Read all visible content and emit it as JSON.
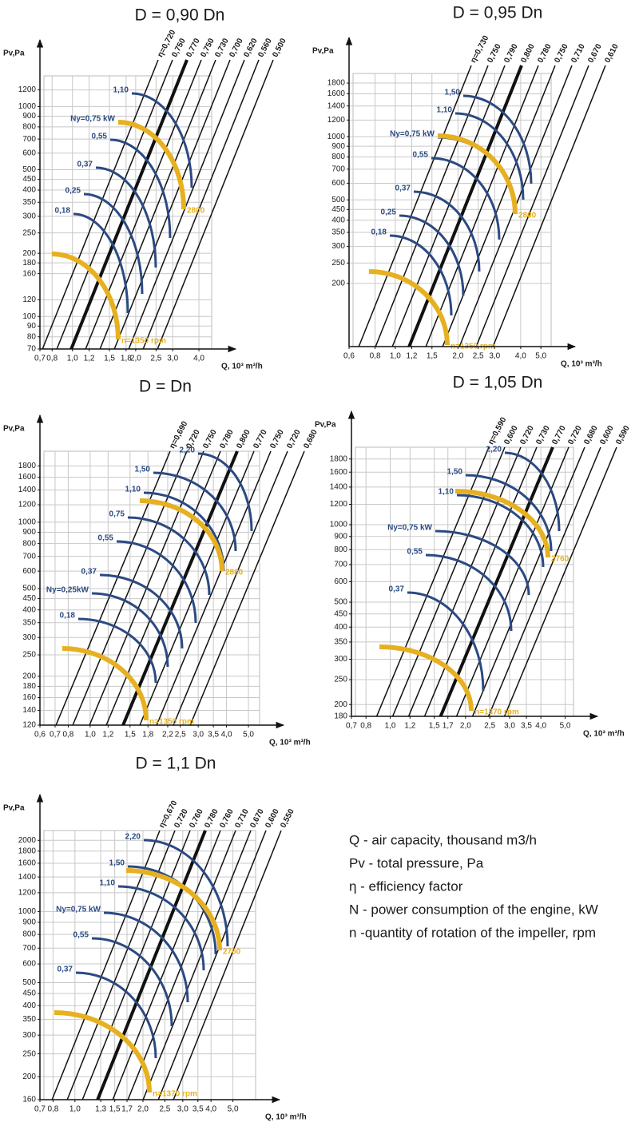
{
  "chart_data": [
    {
      "type": "fan-curve",
      "title": "D = 0,90 Dn",
      "y_label": "Pv,Pa",
      "x_label": "Q, 10³ m³/h",
      "xlog": true,
      "ylog": true,
      "grid": true,
      "xlim": [
        0.7,
        4.6
      ],
      "ylim": [
        70,
        1400
      ],
      "xticks": [
        {
          "value": 0.7,
          "label": "0,7"
        },
        {
          "value": 0.8,
          "label": "0,8"
        },
        {
          "value": 1.0,
          "label": "1,0"
        },
        {
          "value": 1.2,
          "label": "1,2"
        },
        {
          "value": 1.5,
          "label": "1,5"
        },
        {
          "value": 1.8,
          "label": "1,8"
        },
        {
          "value": 2.0,
          "label": "2,0"
        },
        {
          "value": 2.5,
          "label": "2,5"
        },
        {
          "value": 3.0,
          "label": "3,0"
        },
        {
          "value": 4.0,
          "label": "4,0"
        }
      ],
      "yticks": [
        70,
        80,
        90,
        100,
        120,
        160,
        180,
        200,
        250,
        300,
        350,
        400,
        450,
        500,
        600,
        700,
        800,
        900,
        1000,
        1200
      ],
      "efficiency_labels": [
        "η=0,720",
        "0,750",
        "0,770",
        "0,750",
        "0,730",
        "0,700",
        "0,620",
        "0,560",
        "0,500"
      ],
      "power_labels": [
        "1,10",
        "Ny=0,75 kW",
        "0,55",
        "0,37",
        "0,25",
        "0,18"
      ],
      "speed_labels": [
        "2800",
        "n=1350 rpm"
      ],
      "efficiency_color": "#111111",
      "power_color": "#2b4a82",
      "speed_color": "#e6b020"
    },
    {
      "type": "fan-curve",
      "title": "D = 0,95 Dn",
      "y_label": "Pv,Pa",
      "x_label": "Q, 10³ m³/h",
      "xlog": true,
      "ylog": true,
      "grid": true,
      "xlim": [
        0.6,
        5.6
      ],
      "ylim": [
        100,
        2000
      ],
      "xticks": [
        {
          "value": 0.6,
          "label": "0,6"
        },
        {
          "value": 0.8,
          "label": "0,8"
        },
        {
          "value": 1.0,
          "label": "1,0"
        },
        {
          "value": 1.2,
          "label": "1,2"
        },
        {
          "value": 1.5,
          "label": "1,5"
        },
        {
          "value": 2.0,
          "label": "2,0"
        },
        {
          "value": 2.5,
          "label": "2,5"
        },
        {
          "value": 3.0,
          "label": "3,0"
        },
        {
          "value": 4.0,
          "label": "4,0"
        },
        {
          "value": 5.0,
          "label": "5,0"
        }
      ],
      "yticks": [
        200,
        250,
        300,
        350,
        400,
        450,
        500,
        600,
        700,
        800,
        900,
        1000,
        1200,
        1400,
        1600,
        1800
      ],
      "efficiency_labels": [
        "η=0,730",
        "0,750",
        "0,790",
        "0,800",
        "0,780",
        "0,750",
        "0,710",
        "0,670",
        "0,610"
      ],
      "power_labels": [
        "1,50",
        "1,10",
        "Ny=0,75 kW",
        "0,55",
        "0,37",
        "0,25",
        "0,18"
      ],
      "speed_labels": [
        "2800",
        "n=1350 rpm"
      ],
      "efficiency_color": "#111111",
      "power_color": "#2b4a82",
      "speed_color": "#e6b020"
    },
    {
      "type": "fan-curve",
      "title": "D = Dn",
      "y_label": "Pv,Pa",
      "x_label": "Q, 10³ m³/h",
      "xlog": true,
      "ylog": true,
      "grid": true,
      "xlim": [
        0.6,
        5.6
      ],
      "ylim": [
        120,
        2100
      ],
      "xticks": [
        {
          "value": 0.6,
          "label": "0,6"
        },
        {
          "value": 0.7,
          "label": "0,7"
        },
        {
          "value": 0.8,
          "label": "0,8"
        },
        {
          "value": 1.0,
          "label": "1,0"
        },
        {
          "value": 1.2,
          "label": "1,2"
        },
        {
          "value": 1.5,
          "label": "1,5"
        },
        {
          "value": 1.8,
          "label": "1,8"
        },
        {
          "value": 2.2,
          "label": "2,2"
        },
        {
          "value": 2.5,
          "label": "2,5"
        },
        {
          "value": 3.0,
          "label": "3,0"
        },
        {
          "value": 3.5,
          "label": "3,5"
        },
        {
          "value": 4.0,
          "label": "4,0"
        },
        {
          "value": 5.0,
          "label": "5,0"
        }
      ],
      "yticks": [
        120,
        140,
        160,
        180,
        200,
        250,
        300,
        350,
        400,
        450,
        500,
        600,
        700,
        800,
        900,
        1000,
        1200,
        1400,
        1600,
        1800
      ],
      "efficiency_labels": [
        "η=0,690",
        "0,720",
        "0,750",
        "0,780",
        "0,800",
        "0,770",
        "0,750",
        "0,720",
        "0,680"
      ],
      "power_labels": [
        "2,20",
        "1,50",
        "1,10",
        "0,75",
        "0,55",
        "0,37",
        "Ny=0,25kW",
        "0,18"
      ],
      "speed_labels": [
        "2880",
        "n=1350 rpm"
      ],
      "efficiency_color": "#111111",
      "power_color": "#2b4a82",
      "speed_color": "#e6b020"
    },
    {
      "type": "fan-curve",
      "title": "D = 1,05 Dn",
      "y_label": "Pv,Pa",
      "x_label": "Q, 10³ m³/h",
      "xlog": true,
      "ylog": true,
      "grid": true,
      "xlim": [
        0.7,
        5.4
      ],
      "ylim": [
        180,
        2000
      ],
      "xticks": [
        {
          "value": 0.7,
          "label": "0,7"
        },
        {
          "value": 0.8,
          "label": "0,8"
        },
        {
          "value": 1.0,
          "label": "1,0"
        },
        {
          "value": 1.2,
          "label": "1,2"
        },
        {
          "value": 1.5,
          "label": "1,5"
        },
        {
          "value": 1.7,
          "label": "1,7"
        },
        {
          "value": 2.0,
          "label": "2,0"
        },
        {
          "value": 2.5,
          "label": "2,5"
        },
        {
          "value": 3.0,
          "label": "3,0"
        },
        {
          "value": 3.5,
          "label": "3,5"
        },
        {
          "value": 4.0,
          "label": "4,0"
        },
        {
          "value": 5.0,
          "label": "5,0"
        }
      ],
      "yticks": [
        180,
        200,
        250,
        300,
        350,
        400,
        450,
        500,
        600,
        700,
        800,
        900,
        1000,
        1200,
        1400,
        1600,
        1800
      ],
      "efficiency_labels": [
        "η=0,590",
        "0,600",
        "0,720",
        "0,730",
        "0,770",
        "0,720",
        "0,680",
        "0,600",
        "0,590"
      ],
      "power_labels": [
        "2,20",
        "1,50",
        "1,10",
        "Ny=0,75 kW",
        "0,55",
        "0,37"
      ],
      "speed_labels": [
        "2760",
        "n=1370 rpm"
      ],
      "efficiency_color": "#111111",
      "power_color": "#2b4a82",
      "speed_color": "#e6b020"
    },
    {
      "type": "fan-curve",
      "title": "D = 1,1 Dn",
      "y_label": "Pv,Pa",
      "x_label": "Q, 10³ m³/h",
      "xlog": true,
      "ylog": true,
      "grid": true,
      "xlim": [
        0.7,
        6.3
      ],
      "ylim": [
        160,
        2200
      ],
      "xticks": [
        {
          "value": 0.7,
          "label": "0,7"
        },
        {
          "value": 0.8,
          "label": "0,8"
        },
        {
          "value": 1.0,
          "label": "1,0"
        },
        {
          "value": 1.3,
          "label": "1,3"
        },
        {
          "value": 1.5,
          "label": "1,5"
        },
        {
          "value": 1.7,
          "label": "1,7"
        },
        {
          "value": 2.0,
          "label": "2,0"
        },
        {
          "value": 2.5,
          "label": "2,5"
        },
        {
          "value": 3.0,
          "label": "3,0"
        },
        {
          "value": 3.5,
          "label": "3,5"
        },
        {
          "value": 4.0,
          "label": "4,0"
        },
        {
          "value": 5.0,
          "label": "5,0"
        }
      ],
      "yticks": [
        160,
        200,
        250,
        300,
        350,
        400,
        450,
        500,
        600,
        700,
        800,
        900,
        1000,
        1200,
        1400,
        1600,
        1800,
        2000
      ],
      "efficiency_labels": [
        "η=0,670",
        "0,720",
        "0,760",
        "0,780",
        "0,760",
        "0,710",
        "0,670",
        "0,600",
        "0,550"
      ],
      "power_labels": [
        "2,20",
        "1,50",
        "1,10",
        "Ny=0,75 kW",
        "0,55",
        "0,37"
      ],
      "speed_labels": [
        "2760",
        "n=1370 rpm"
      ],
      "efficiency_color": "#111111",
      "power_color": "#2b4a82",
      "speed_color": "#e6b020"
    }
  ],
  "notes": [
    "Q - air capacity, thousand m3/h",
    "Pv - total pressure, Pa",
    "η - efficiency factor",
    "N - power consumption of the engine, kW",
    "n -quantity of rotation of the impeller, rpm"
  ]
}
